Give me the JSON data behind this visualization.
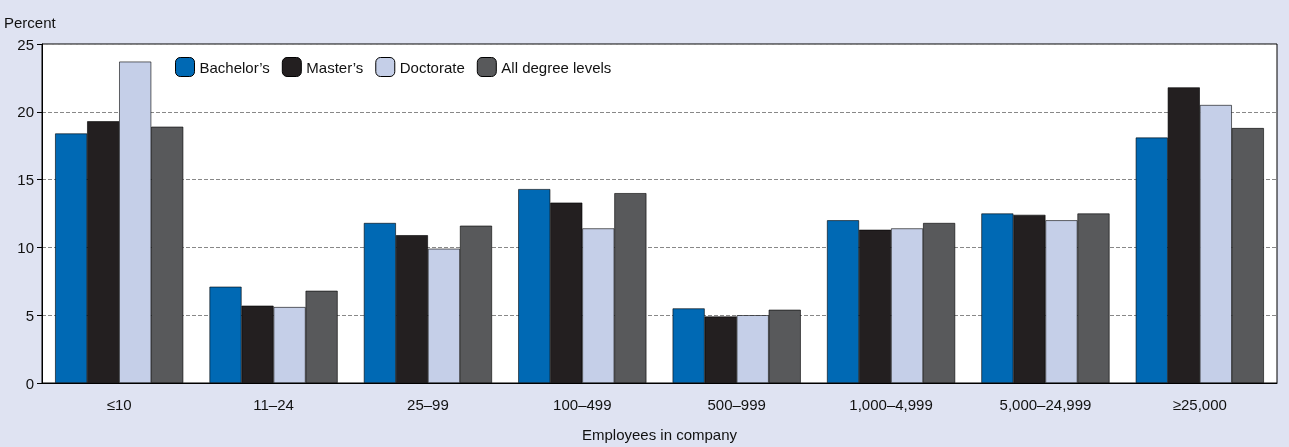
{
  "chart_data": {
    "type": "bar",
    "ylabel": "Percent",
    "xlabel": "Employees in company",
    "categories": [
      "≤10",
      "11–24",
      "25–99",
      "100–499",
      "500–999",
      "1,000–4,999",
      "5,000–24,999",
      "≥25,000"
    ],
    "series": [
      {
        "name": "Bachelor’s",
        "color": "#0069b4",
        "values": [
          18.4,
          7.1,
          11.8,
          14.3,
          5.5,
          12.0,
          12.5,
          18.1
        ]
      },
      {
        "name": "Master’s",
        "color": "#231f20",
        "values": [
          19.3,
          5.7,
          10.9,
          13.3,
          4.9,
          11.3,
          12.4,
          21.8
        ]
      },
      {
        "name": "Doctorate",
        "color": "#c5cfe8",
        "values": [
          23.7,
          5.6,
          9.9,
          11.4,
          5.0,
          11.4,
          12.0,
          20.5
        ]
      },
      {
        "name": "All degree levels",
        "color": "#58595b",
        "values": [
          18.9,
          6.8,
          11.6,
          14.0,
          5.4,
          11.8,
          12.5,
          18.8
        ]
      }
    ],
    "ylim": [
      0,
      25
    ],
    "yticks": [
      0,
      5,
      10,
      15,
      20,
      25
    ],
    "grid": "y",
    "legend": "top left"
  }
}
